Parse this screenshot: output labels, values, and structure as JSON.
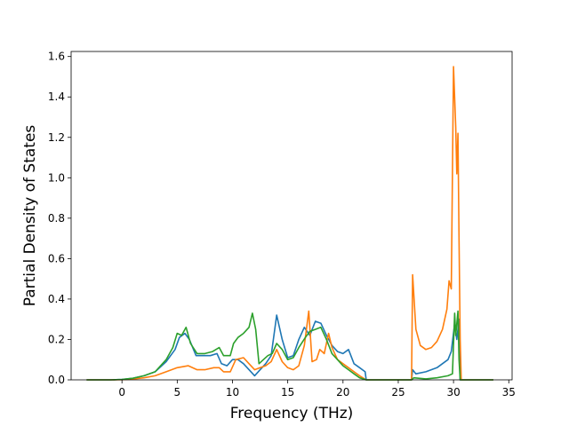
{
  "chart_data": {
    "type": "line",
    "title": "",
    "xlabel": "Frequency (THz)",
    "ylabel": "Partial Density of States",
    "xlim": [
      -4.6,
      35.3
    ],
    "ylim": [
      0.0,
      1.625
    ],
    "xticks": [
      0,
      5,
      10,
      15,
      20,
      25,
      30,
      35
    ],
    "yticks": [
      0.0,
      0.2,
      0.4,
      0.6,
      0.8,
      1.0,
      1.2,
      1.4,
      1.6
    ],
    "xtick_labels": [
      "0",
      "5",
      "10",
      "15",
      "20",
      "25",
      "30",
      "35"
    ],
    "ytick_labels": [
      "0.0",
      "0.2",
      "0.4",
      "0.6",
      "0.8",
      "1.0",
      "1.2",
      "1.4",
      "1.6"
    ],
    "grid": false,
    "legend": "none",
    "series": [
      {
        "color": "#1f77b4",
        "points": [
          [
            -3.2,
            0
          ],
          [
            -1,
            0
          ],
          [
            0,
            0.002
          ],
          [
            1,
            0.008
          ],
          [
            2,
            0.02
          ],
          [
            3,
            0.04
          ],
          [
            4,
            0.09
          ],
          [
            4.8,
            0.15
          ],
          [
            5.2,
            0.21
          ],
          [
            5.7,
            0.23
          ],
          [
            6.1,
            0.2
          ],
          [
            6.7,
            0.12
          ],
          [
            7.2,
            0.12
          ],
          [
            8,
            0.12
          ],
          [
            8.6,
            0.13
          ],
          [
            9,
            0.08
          ],
          [
            9.5,
            0.07
          ],
          [
            10,
            0.1
          ],
          [
            10.5,
            0.1
          ],
          [
            11,
            0.08
          ],
          [
            11.5,
            0.05
          ],
          [
            12,
            0.02
          ],
          [
            12.5,
            0.05
          ],
          [
            13,
            0.08
          ],
          [
            13.5,
            0.12
          ],
          [
            14,
            0.32
          ],
          [
            14.5,
            0.2
          ],
          [
            15,
            0.11
          ],
          [
            15.5,
            0.12
          ],
          [
            16,
            0.2
          ],
          [
            16.5,
            0.26
          ],
          [
            17,
            0.22
          ],
          [
            17.5,
            0.29
          ],
          [
            18,
            0.28
          ],
          [
            18.5,
            0.22
          ],
          [
            19,
            0.17
          ],
          [
            19.5,
            0.14
          ],
          [
            20,
            0.13
          ],
          [
            20.5,
            0.15
          ],
          [
            21,
            0.08
          ],
          [
            21.5,
            0.06
          ],
          [
            22,
            0.04
          ],
          [
            22.1,
            0
          ],
          [
            26.2,
            0
          ],
          [
            26.3,
            0.05
          ],
          [
            26.6,
            0.03
          ],
          [
            27.5,
            0.04
          ],
          [
            28.5,
            0.06
          ],
          [
            29.5,
            0.1
          ],
          [
            29.8,
            0.14
          ],
          [
            30.1,
            0.28
          ],
          [
            30.3,
            0.2
          ],
          [
            30.5,
            0.3
          ],
          [
            30.6,
            0
          ],
          [
            33.6,
            0
          ]
        ]
      },
      {
        "color": "#ff7f0e",
        "points": [
          [
            -3.2,
            0
          ],
          [
            -1,
            0
          ],
          [
            0,
            0.001
          ],
          [
            1,
            0.004
          ],
          [
            2,
            0.01
          ],
          [
            3,
            0.02
          ],
          [
            4,
            0.04
          ],
          [
            5,
            0.06
          ],
          [
            6,
            0.07
          ],
          [
            6.8,
            0.05
          ],
          [
            7.5,
            0.05
          ],
          [
            8.3,
            0.06
          ],
          [
            8.8,
            0.06
          ],
          [
            9.2,
            0.04
          ],
          [
            9.8,
            0.04
          ],
          [
            10.3,
            0.1
          ],
          [
            11,
            0.11
          ],
          [
            11.5,
            0.08
          ],
          [
            12,
            0.05
          ],
          [
            12.5,
            0.06
          ],
          [
            13,
            0.07
          ],
          [
            13.5,
            0.09
          ],
          [
            14,
            0.15
          ],
          [
            14.5,
            0.09
          ],
          [
            15,
            0.06
          ],
          [
            15.5,
            0.05
          ],
          [
            16,
            0.07
          ],
          [
            16.5,
            0.17
          ],
          [
            16.9,
            0.34
          ],
          [
            17.2,
            0.09
          ],
          [
            17.6,
            0.1
          ],
          [
            17.9,
            0.15
          ],
          [
            18.3,
            0.13
          ],
          [
            18.7,
            0.23
          ],
          [
            19,
            0.16
          ],
          [
            19.5,
            0.1
          ],
          [
            20,
            0.08
          ],
          [
            20.5,
            0.06
          ],
          [
            21,
            0.04
          ],
          [
            21.5,
            0.02
          ],
          [
            22.1,
            0
          ],
          [
            26.2,
            0
          ],
          [
            26.3,
            0.52
          ],
          [
            26.6,
            0.25
          ],
          [
            27,
            0.17
          ],
          [
            27.5,
            0.15
          ],
          [
            28,
            0.16
          ],
          [
            28.5,
            0.19
          ],
          [
            29,
            0.25
          ],
          [
            29.4,
            0.35
          ],
          [
            29.6,
            0.49
          ],
          [
            29.8,
            0.45
          ],
          [
            30,
            1.55
          ],
          [
            30.2,
            1.25
          ],
          [
            30.3,
            1.02
          ],
          [
            30.4,
            1.22
          ],
          [
            30.5,
            0.7
          ],
          [
            30.6,
            0.2
          ],
          [
            30.7,
            0
          ],
          [
            33.6,
            0
          ]
        ]
      },
      {
        "color": "#2ca02c",
        "points": [
          [
            -3.2,
            0
          ],
          [
            -1,
            0
          ],
          [
            0,
            0.002
          ],
          [
            1,
            0.008
          ],
          [
            2,
            0.02
          ],
          [
            3,
            0.04
          ],
          [
            4,
            0.1
          ],
          [
            4.6,
            0.16
          ],
          [
            5,
            0.23
          ],
          [
            5.4,
            0.22
          ],
          [
            5.8,
            0.26
          ],
          [
            6.2,
            0.18
          ],
          [
            6.8,
            0.13
          ],
          [
            7.5,
            0.13
          ],
          [
            8.2,
            0.14
          ],
          [
            8.8,
            0.16
          ],
          [
            9.2,
            0.12
          ],
          [
            9.8,
            0.12
          ],
          [
            10.1,
            0.18
          ],
          [
            10.5,
            0.21
          ],
          [
            11,
            0.23
          ],
          [
            11.5,
            0.26
          ],
          [
            11.8,
            0.33
          ],
          [
            12.1,
            0.25
          ],
          [
            12.4,
            0.08
          ],
          [
            12.8,
            0.1
          ],
          [
            13.2,
            0.12
          ],
          [
            13.6,
            0.13
          ],
          [
            14,
            0.18
          ],
          [
            14.5,
            0.15
          ],
          [
            15,
            0.1
          ],
          [
            15.5,
            0.11
          ],
          [
            16,
            0.16
          ],
          [
            16.6,
            0.21
          ],
          [
            17,
            0.24
          ],
          [
            17.5,
            0.25
          ],
          [
            18,
            0.26
          ],
          [
            18.5,
            0.2
          ],
          [
            19,
            0.13
          ],
          [
            19.5,
            0.1
          ],
          [
            20,
            0.07
          ],
          [
            20.5,
            0.05
          ],
          [
            21,
            0.03
          ],
          [
            21.5,
            0.01
          ],
          [
            22.1,
            0
          ],
          [
            26.2,
            0
          ],
          [
            26.4,
            0.01
          ],
          [
            27.5,
            0.005
          ],
          [
            28.5,
            0.01
          ],
          [
            29.5,
            0.02
          ],
          [
            29.9,
            0.03
          ],
          [
            30.1,
            0.33
          ],
          [
            30.2,
            0.22
          ],
          [
            30.4,
            0.34
          ],
          [
            30.5,
            0.1
          ],
          [
            30.6,
            0
          ],
          [
            33.6,
            0
          ]
        ]
      }
    ]
  }
}
